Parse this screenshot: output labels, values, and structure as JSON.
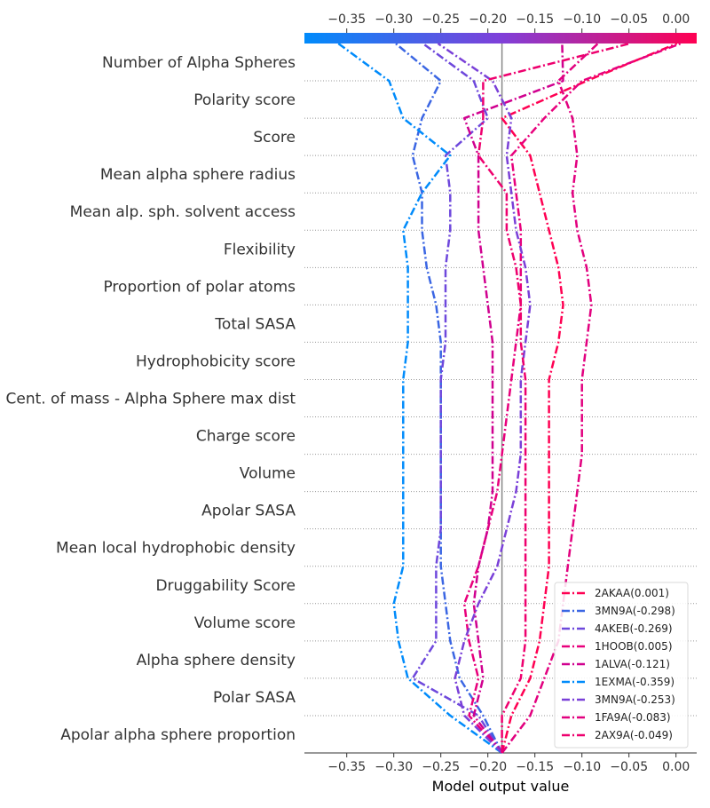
{
  "chart_data": {
    "type": "line",
    "title": "",
    "xlabel": "Model output value",
    "ylabel": "",
    "xlim": [
      -0.395,
      0.022
    ],
    "xticks": [
      -0.35,
      -0.3,
      -0.25,
      -0.2,
      -0.15,
      -0.1,
      -0.05,
      0.0
    ],
    "xtick_labels": [
      "−0.35",
      "−0.30",
      "−0.25",
      "−0.20",
      "−0.15",
      "−0.10",
      "−0.05",
      "0.00"
    ],
    "base_value": -0.185,
    "colorbar_colors": [
      "#008bfb",
      "#7f40d9",
      "#ff0052"
    ],
    "grid": "dotted horizontal lines between features",
    "legend_position": "lower-right",
    "features": [
      "Apolar alpha sphere proportion",
      "Polar SASA",
      "Alpha sphere density",
      "Volume score",
      "Druggability Score",
      "Mean local hydrophobic density",
      "Apolar SASA",
      "Volume",
      "Charge score",
      "Cent. of mass - Alpha Sphere max dist",
      "Hydrophobicity score",
      "Total SASA",
      "Proportion of polar atoms",
      "Flexibility",
      "Mean alp. sph. solvent access",
      "Mean alpha sphere radius",
      "Score",
      "Polarity score",
      "Number of Alpha Spheres"
    ],
    "series": [
      {
        "name": "2AKAA(0.001)",
        "color": "#ff0052",
        "values": [
          -0.185,
          -0.175,
          -0.155,
          -0.145,
          -0.14,
          -0.135,
          -0.135,
          -0.135,
          -0.135,
          -0.135,
          -0.135,
          -0.125,
          -0.12,
          -0.125,
          -0.135,
          -0.145,
          -0.155,
          -0.185,
          -0.095,
          0.001
        ]
      },
      {
        "name": "3MN9A(-0.298)",
        "color": "#3b66e3",
        "values": [
          -0.185,
          -0.205,
          -0.23,
          -0.24,
          -0.245,
          -0.25,
          -0.25,
          -0.25,
          -0.25,
          -0.25,
          -0.25,
          -0.25,
          -0.255,
          -0.265,
          -0.27,
          -0.27,
          -0.28,
          -0.27,
          -0.25,
          -0.298
        ]
      },
      {
        "name": "4AKEB(-0.269)",
        "color": "#6e48dc",
        "values": [
          -0.185,
          -0.21,
          -0.28,
          -0.255,
          -0.255,
          -0.255,
          -0.25,
          -0.25,
          -0.25,
          -0.25,
          -0.25,
          -0.245,
          -0.245,
          -0.245,
          -0.24,
          -0.24,
          -0.245,
          -0.2,
          -0.215,
          -0.269
        ]
      },
      {
        "name": "1HOOB(0.005)",
        "color": "#e8007c",
        "values": [
          -0.185,
          -0.22,
          -0.21,
          -0.22,
          -0.225,
          -0.21,
          -0.2,
          -0.19,
          -0.185,
          -0.18,
          -0.175,
          -0.17,
          -0.165,
          -0.165,
          -0.165,
          -0.17,
          -0.175,
          -0.14,
          -0.1,
          0.005
        ]
      },
      {
        "name": "1ALVA(-0.121)",
        "color": "#d0008f",
        "values": [
          -0.185,
          -0.215,
          -0.205,
          -0.21,
          -0.215,
          -0.21,
          -0.2,
          -0.195,
          -0.195,
          -0.195,
          -0.195,
          -0.195,
          -0.2,
          -0.205,
          -0.21,
          -0.21,
          -0.21,
          -0.225,
          -0.12,
          -0.121
        ]
      },
      {
        "name": "1EXMA(-0.359)",
        "color": "#008bfb",
        "values": [
          -0.185,
          -0.24,
          -0.285,
          -0.295,
          -0.3,
          -0.29,
          -0.29,
          -0.29,
          -0.29,
          -0.29,
          -0.29,
          -0.285,
          -0.285,
          -0.285,
          -0.29,
          -0.27,
          -0.24,
          -0.29,
          -0.305,
          -0.359
        ]
      },
      {
        "name": "3MN9A(-0.253)",
        "color": "#7a40d8",
        "values": [
          -0.185,
          -0.225,
          -0.235,
          -0.225,
          -0.21,
          -0.19,
          -0.18,
          -0.17,
          -0.165,
          -0.165,
          -0.165,
          -0.16,
          -0.155,
          -0.16,
          -0.17,
          -0.175,
          -0.18,
          -0.175,
          -0.195,
          -0.253
        ]
      },
      {
        "name": "1FA9A(-0.083)",
        "color": "#e2007f",
        "values": [
          -0.185,
          -0.155,
          -0.14,
          -0.125,
          -0.12,
          -0.115,
          -0.11,
          -0.105,
          -0.1,
          -0.1,
          -0.1,
          -0.095,
          -0.09,
          -0.095,
          -0.105,
          -0.11,
          -0.105,
          -0.11,
          -0.125,
          -0.083
        ]
      },
      {
        "name": "2AX9A(-0.049)",
        "color": "#ee006e",
        "values": [
          -0.185,
          -0.185,
          -0.165,
          -0.16,
          -0.16,
          -0.16,
          -0.16,
          -0.16,
          -0.16,
          -0.16,
          -0.16,
          -0.165,
          -0.165,
          -0.17,
          -0.18,
          -0.18,
          -0.21,
          -0.205,
          -0.205,
          -0.049
        ]
      }
    ]
  }
}
